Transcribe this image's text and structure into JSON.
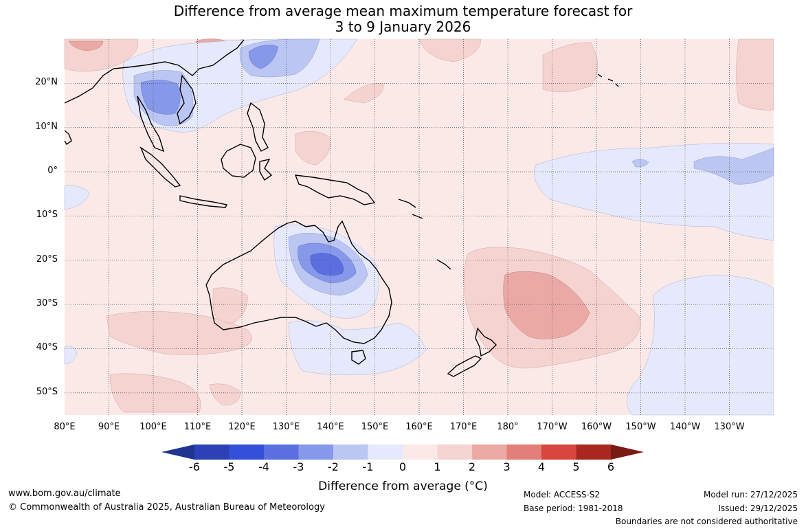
{
  "title": {
    "line1": "Difference from average mean maximum temperature forecast for",
    "line2": "3 to 9 January 2026"
  },
  "map": {
    "lon_range": [
      80,
      240
    ],
    "lat_range": [
      -55,
      30
    ],
    "latitude_labels": [
      {
        "lat": 20,
        "label": "20°N"
      },
      {
        "lat": 10,
        "label": "10°N"
      },
      {
        "lat": 0,
        "label": "0°"
      },
      {
        "lat": -10,
        "label": "10°S"
      },
      {
        "lat": -20,
        "label": "20°S"
      },
      {
        "lat": -30,
        "label": "30°S"
      },
      {
        "lat": -40,
        "label": "40°S"
      },
      {
        "lat": -50,
        "label": "50°S"
      }
    ],
    "longitude_labels": [
      {
        "lon": 80,
        "label": "80°E"
      },
      {
        "lon": 90,
        "label": "90°E"
      },
      {
        "lon": 100,
        "label": "100°E"
      },
      {
        "lon": 110,
        "label": "110°E"
      },
      {
        "lon": 120,
        "label": "120°E"
      },
      {
        "lon": 130,
        "label": "130°E"
      },
      {
        "lon": 140,
        "label": "140°E"
      },
      {
        "lon": 150,
        "label": "150°E"
      },
      {
        "lon": 160,
        "label": "160°E"
      },
      {
        "lon": 170,
        "label": "170°E"
      },
      {
        "lon": 180,
        "label": "180°"
      },
      {
        "lon": 190,
        "label": "170°W"
      },
      {
        "lon": 200,
        "label": "160°W"
      },
      {
        "lon": 210,
        "label": "150°W"
      },
      {
        "lon": 220,
        "label": "140°W"
      },
      {
        "lon": 230,
        "label": "130°W"
      }
    ],
    "colors": {
      "background": "#fbe9e8",
      "warm_1_2": "#f5d3d1",
      "warm_2_3": "#eba9a6",
      "warm_3_4": "#e37f79",
      "cool_0_1": "#e6e9fb",
      "cool_1_2": "#bcc6f2",
      "cool_2_3": "#8698ea",
      "cool_3_4": "#5b6fe0",
      "cool_4_5": "#3450d8",
      "land_outline": "#000000",
      "grid": "#555555"
    }
  },
  "colorbar": {
    "title": "Difference from average (°C)",
    "ticks": [
      "-6",
      "-5",
      "-4",
      "-3",
      "-2",
      "-1",
      "0",
      "1",
      "2",
      "3",
      "4",
      "5",
      "6"
    ],
    "colors": [
      "#1f3591",
      "#2b41b5",
      "#3450d8",
      "#5b6fe0",
      "#8698ea",
      "#bcc6f2",
      "#e6e9fb",
      "#fbe9e8",
      "#f5d3d1",
      "#eba9a6",
      "#e37f79",
      "#d9463d",
      "#a8281f",
      "#7a1a14"
    ]
  },
  "footer": {
    "website": "www.bom.gov.au/climate",
    "copyright": "© Commonwealth of Australia 2025, Australian Bureau of Meteorology",
    "model": "Model: ACCESS-S2",
    "base_period": "Base period: 1981-2018",
    "model_run": "Model run: 27/12/2025",
    "issued": "Issued: 29/12/2025",
    "disclaimer": "Boundaries are not considered authoritative"
  }
}
